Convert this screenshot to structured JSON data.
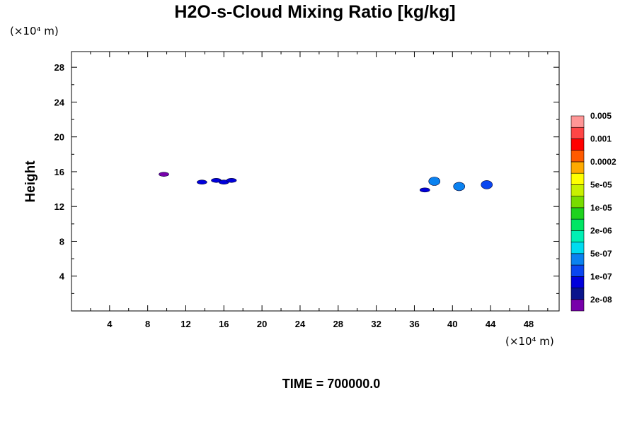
{
  "chart_data": {
    "type": "heatmap",
    "title": "H2O-s-Cloud Mixing Ratio [kg/kg]",
    "ylabel": "Height",
    "xlabel": "",
    "y_unit": "(×10⁴ m)",
    "x_unit": "(×10⁴ m)",
    "xlim": [
      0,
      51.2
    ],
    "ylim": [
      0,
      29.8
    ],
    "x_ticks": [
      4,
      8,
      12,
      16,
      20,
      24,
      28,
      32,
      36,
      40,
      44,
      48
    ],
    "x_tick_labels": [
      "4",
      "8",
      "12",
      "16",
      "20",
      "24",
      "28",
      "32",
      "36",
      "40",
      "44",
      "48"
    ],
    "y_ticks": [
      4,
      8,
      12,
      16,
      20,
      24,
      28
    ],
    "y_tick_labels": [
      "4",
      "8",
      "12",
      "16",
      "20",
      "24",
      "28"
    ],
    "grid": false,
    "colorbar": {
      "colors": [
        "#7700aa",
        "#0a148c",
        "#0000dc",
        "#0a46f0",
        "#0a82f0",
        "#00dcf0",
        "#00f0b4",
        "#00e664",
        "#1ed21e",
        "#78dc00",
        "#c8f000",
        "#ffff00",
        "#ffaa00",
        "#ff5a00",
        "#ff0000",
        "#ff4646",
        "#ff9696"
      ],
      "labels": [
        "2e-08",
        "1e-07",
        "5e-07",
        "2e-06",
        "1e-05",
        "5e-05",
        "0.0002",
        "0.001",
        "0.005"
      ]
    },
    "features": [
      {
        "x": 9.7,
        "y": 15.7,
        "level": 0
      },
      {
        "x": 13.7,
        "y": 14.8,
        "level": 2
      },
      {
        "x": 15.2,
        "y": 15.0,
        "level": 2
      },
      {
        "x": 16.0,
        "y": 14.8,
        "level": 2
      },
      {
        "x": 16.8,
        "y": 15.0,
        "level": 2
      },
      {
        "x": 37.1,
        "y": 13.9,
        "level": 2
      },
      {
        "x": 38.1,
        "y": 14.9,
        "level": 4
      },
      {
        "x": 40.7,
        "y": 14.3,
        "level": 4
      },
      {
        "x": 43.6,
        "y": 14.5,
        "level": 3
      }
    ]
  },
  "footer": {
    "time_label": "TIME = 700000.0"
  }
}
